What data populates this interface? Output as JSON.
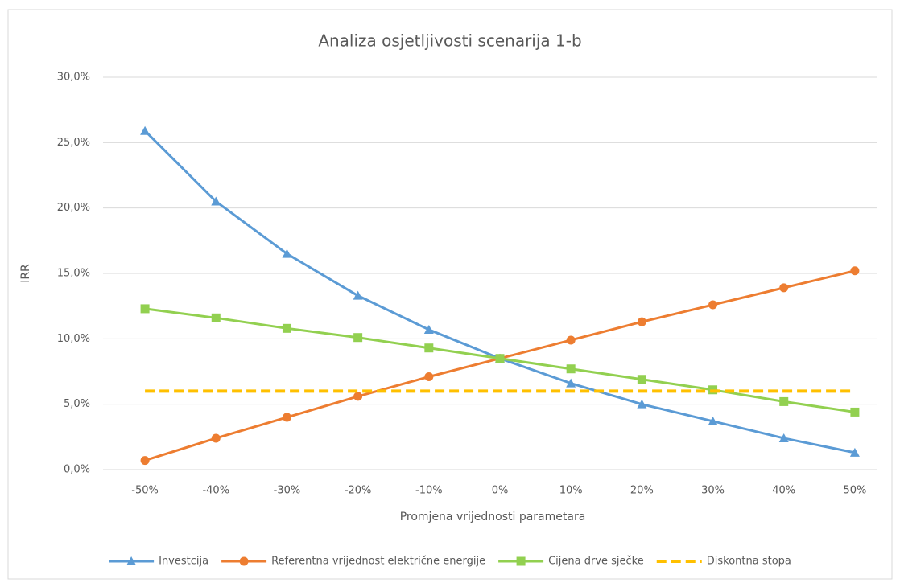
{
  "chart_data": {
    "type": "line",
    "title": "Analiza osjetljivosti scenarija 1-b",
    "xlabel": "Promjena vrijednosti parametara",
    "ylabel": "IRR",
    "categories": [
      "-50%",
      "-40%",
      "-30%",
      "-20%",
      "-10%",
      "0%",
      "10%",
      "20%",
      "30%",
      "40%",
      "50%"
    ],
    "series": [
      {
        "name": "Investcija",
        "color": "#5b9bd5",
        "marker": "triangle",
        "values": [
          25.9,
          20.5,
          16.5,
          13.3,
          10.7,
          8.5,
          6.6,
          5.0,
          3.7,
          2.4,
          1.3
        ]
      },
      {
        "name": "Referentna vrijednost električne energije",
        "color": "#ed7d31",
        "marker": "circle",
        "values": [
          0.7,
          2.4,
          4.0,
          5.6,
          7.1,
          8.5,
          9.9,
          11.3,
          12.6,
          13.9,
          15.2
        ]
      },
      {
        "name": "Cijena drve sječke",
        "color": "#92d050",
        "marker": "square",
        "values": [
          12.3,
          11.6,
          10.8,
          10.1,
          9.3,
          8.5,
          7.7,
          6.9,
          6.1,
          5.2,
          4.4
        ]
      },
      {
        "name": "Diskontna stopa",
        "color": "#ffc000",
        "marker": "none",
        "dashed": true,
        "values": [
          6.0,
          6.0,
          6.0,
          6.0,
          6.0,
          6.0,
          6.0,
          6.0,
          6.0,
          6.0,
          6.0
        ]
      }
    ],
    "ylim": [
      0,
      30
    ],
    "yticks": [
      {
        "value": 0,
        "label": "0,0%"
      },
      {
        "value": 5,
        "label": "5,0%"
      },
      {
        "value": 10,
        "label": "10,0%"
      },
      {
        "value": 15,
        "label": "15,0%"
      },
      {
        "value": 20,
        "label": "20,0%"
      },
      {
        "value": 25,
        "label": "25,0%"
      },
      {
        "value": 30,
        "label": "30,0%"
      }
    ],
    "grid": true,
    "legend": "bottom"
  }
}
